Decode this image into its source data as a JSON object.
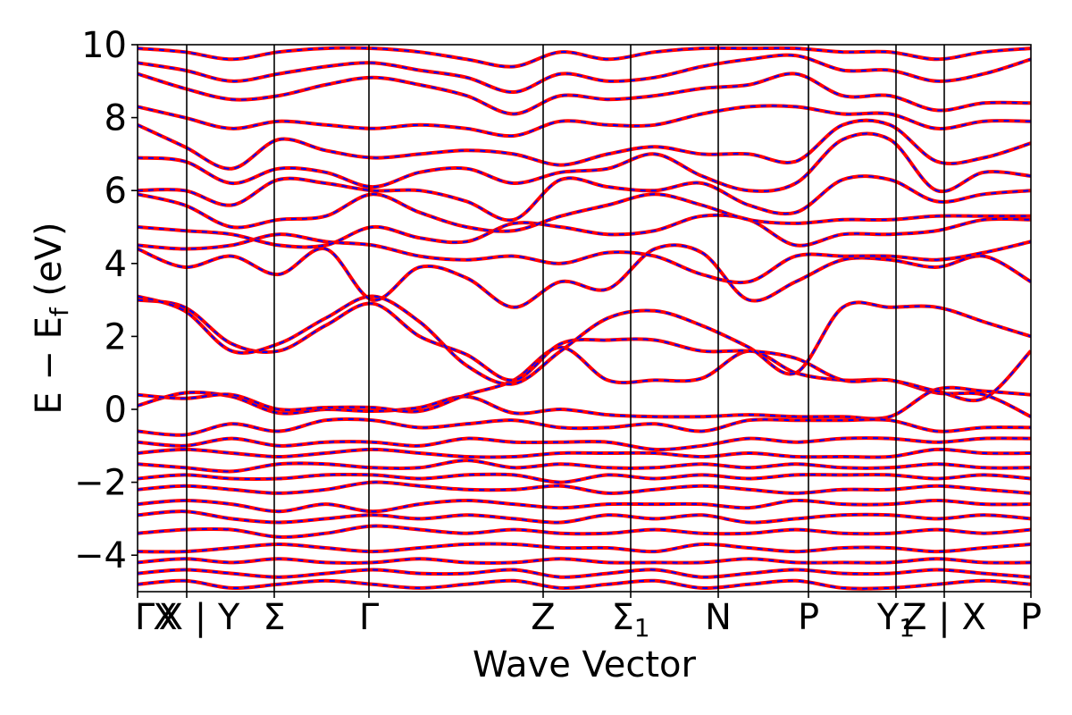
{
  "chart_data": {
    "type": "line",
    "title": "",
    "xlabel": "Wave Vector",
    "ylabel": "E − E",
    "ylabel_subscript": "f",
    "ylabel_unit": " (eV)",
    "ylim": [
      -5,
      10
    ],
    "yticks": [
      {
        "value": -4,
        "label": "−4"
      },
      {
        "value": -2,
        "label": "−2"
      },
      {
        "value": 0,
        "label": "0"
      },
      {
        "value": 2,
        "label": "2"
      },
      {
        "value": 4,
        "label": "4"
      },
      {
        "value": 6,
        "label": "6"
      },
      {
        "value": 8,
        "label": "8"
      },
      {
        "value": 10,
        "label": "10"
      }
    ],
    "xlim": [
      0,
      1
    ],
    "high_symmetry_points": [
      {
        "x": 0.0,
        "label": "Γ"
      },
      {
        "x": 0.055,
        "label": "X"
      },
      {
        "x": 0.153,
        "label": "Σ"
      },
      {
        "x": 0.259,
        "label": "Γ"
      },
      {
        "x": 0.454,
        "label": "Z"
      },
      {
        "x": 0.552,
        "label": "Σ",
        "sub": "1"
      },
      {
        "x": 0.65,
        "label": "N"
      },
      {
        "x": 0.751,
        "label": "P"
      },
      {
        "x": 0.849,
        "label": "Y",
        "sub": "1"
      },
      {
        "x": 0.903,
        "label": "Z | X"
      },
      {
        "x": 1.0,
        "label": "P"
      }
    ],
    "extra_tick_labels": [
      {
        "x": 0.008,
        "label": "Γ"
      },
      {
        "x": 0.031,
        "label": "X"
      },
      {
        "x": 0.055,
        "label": "X | Y"
      }
    ],
    "series": [
      {
        "color": "#ff0000",
        "style": "solid"
      },
      {
        "color": "#0000ff",
        "style": "dashed"
      }
    ],
    "bands": [
      [
        0.1,
        0.45,
        0.35,
        -0.1,
        0.0,
        -0.05,
        0.05,
        0.35,
        -0.1,
        0.0,
        -0.15,
        -0.2,
        -0.2,
        -0.15,
        -0.2,
        -0.2,
        -0.2,
        0.55,
        0.5,
        0.4
      ],
      [
        0.4,
        0.3,
        0.4,
        0.0,
        0.05,
        0.05,
        -0.05,
        0.4,
        0.8,
        1.7,
        0.8,
        0.8,
        0.85,
        1.6,
        1.0,
        0.8,
        0.8,
        0.45,
        0.4,
        -0.2
      ],
      [
        3.0,
        2.8,
        1.8,
        1.6,
        2.3,
        2.9,
        2.0,
        1.5,
        0.8,
        1.8,
        1.9,
        1.9,
        1.6,
        1.6,
        1.4,
        0.8,
        0.8,
        0.5,
        0.3,
        1.6
      ],
      [
        3.1,
        2.7,
        1.6,
        1.8,
        2.5,
        3.1,
        2.4,
        1.2,
        0.7,
        1.6,
        2.5,
        2.7,
        2.3,
        1.7,
        1.0,
        2.8,
        2.8,
        2.8,
        2.4,
        2.0
      ],
      [
        4.4,
        3.9,
        4.2,
        3.7,
        4.4,
        3.0,
        3.9,
        3.6,
        2.8,
        3.5,
        3.3,
        4.4,
        4.3,
        3.0,
        3.5,
        4.1,
        4.1,
        3.9,
        4.2,
        3.5
      ],
      [
        4.5,
        4.4,
        4.5,
        4.8,
        4.6,
        4.5,
        4.2,
        4.1,
        4.2,
        4.0,
        4.3,
        4.2,
        3.7,
        3.5,
        4.2,
        4.2,
        4.2,
        4.1,
        4.3,
        4.6
      ],
      [
        5.0,
        4.9,
        4.8,
        4.5,
        4.5,
        5.0,
        4.7,
        4.6,
        5.1,
        5.0,
        4.8,
        4.9,
        5.3,
        5.2,
        4.5,
        4.8,
        4.8,
        4.9,
        5.2,
        5.2
      ],
      [
        5.9,
        5.6,
        5.0,
        5.2,
        5.3,
        5.9,
        5.4,
        5.0,
        4.9,
        5.3,
        5.6,
        5.9,
        5.6,
        5.2,
        5.1,
        5.2,
        5.2,
        5.3,
        5.3,
        5.3
      ],
      [
        6.0,
        6.0,
        5.6,
        6.3,
        6.2,
        6.0,
        6.0,
        5.7,
        5.2,
        6.3,
        6.1,
        6.0,
        6.2,
        5.6,
        5.4,
        6.3,
        6.3,
        5.7,
        5.9,
        6.0
      ],
      [
        6.9,
        6.8,
        6.2,
        6.6,
        6.5,
        6.1,
        6.5,
        6.6,
        6.2,
        6.5,
        6.6,
        7.0,
        6.4,
        6.0,
        6.2,
        7.4,
        7.4,
        6.0,
        6.5,
        6.4
      ],
      [
        7.8,
        7.2,
        6.6,
        7.4,
        7.1,
        6.9,
        7.0,
        7.1,
        7.0,
        6.7,
        7.0,
        7.2,
        7.0,
        7.0,
        6.8,
        7.8,
        7.8,
        6.8,
        6.9,
        7.3
      ],
      [
        8.3,
        8.0,
        7.7,
        7.9,
        7.8,
        7.7,
        7.8,
        7.7,
        7.5,
        7.9,
        7.8,
        7.8,
        8.1,
        8.3,
        8.3,
        8.1,
        8.1,
        7.7,
        7.9,
        7.9
      ],
      [
        9.2,
        8.8,
        8.5,
        8.6,
        8.9,
        9.1,
        8.9,
        8.6,
        8.1,
        8.6,
        8.5,
        8.6,
        8.8,
        8.9,
        9.2,
        8.6,
        8.6,
        8.2,
        8.4,
        8.4
      ],
      [
        9.5,
        9.3,
        9.0,
        9.2,
        9.4,
        9.5,
        9.3,
        9.1,
        8.7,
        9.2,
        9.0,
        9.1,
        9.4,
        9.6,
        9.7,
        9.3,
        9.3,
        9.0,
        9.2,
        9.6
      ],
      [
        9.9,
        9.8,
        9.6,
        9.8,
        9.9,
        9.9,
        9.8,
        9.6,
        9.4,
        9.8,
        9.6,
        9.8,
        9.9,
        9.9,
        9.9,
        9.8,
        9.8,
        9.6,
        9.8,
        9.9
      ],
      [
        -0.6,
        -0.7,
        -0.4,
        -0.6,
        -0.3,
        -0.3,
        -0.5,
        -0.4,
        -0.3,
        -0.5,
        -0.5,
        -0.4,
        -0.6,
        -0.3,
        -0.3,
        -0.3,
        -0.3,
        -0.6,
        -0.5,
        -0.5
      ],
      [
        -0.9,
        -1.0,
        -0.8,
        -1.0,
        -0.9,
        -0.9,
        -1.0,
        -0.8,
        -0.9,
        -0.9,
        -0.9,
        -1.1,
        -1.0,
        -0.8,
        -0.9,
        -0.8,
        -0.8,
        -0.9,
        -0.8,
        -0.8
      ],
      [
        -1.2,
        -1.1,
        -1.2,
        -1.3,
        -1.2,
        -1.1,
        -1.2,
        -1.3,
        -1.3,
        -1.2,
        -1.2,
        -1.2,
        -1.3,
        -1.2,
        -1.3,
        -1.3,
        -1.3,
        -1.1,
        -1.2,
        -1.2
      ],
      [
        -1.5,
        -1.6,
        -1.7,
        -1.5,
        -1.5,
        -1.6,
        -1.6,
        -1.4,
        -1.6,
        -1.5,
        -1.6,
        -1.6,
        -1.5,
        -1.6,
        -1.5,
        -1.6,
        -1.6,
        -1.5,
        -1.6,
        -1.6
      ],
      [
        -1.9,
        -1.8,
        -1.9,
        -1.9,
        -1.8,
        -1.8,
        -1.9,
        -1.8,
        -1.8,
        -2.0,
        -1.8,
        -1.9,
        -1.8,
        -1.9,
        -1.8,
        -1.8,
        -1.8,
        -1.9,
        -1.8,
        -1.9
      ],
      [
        -2.2,
        -2.1,
        -2.2,
        -2.3,
        -2.2,
        -2.0,
        -2.1,
        -2.2,
        -2.2,
        -2.1,
        -2.3,
        -2.2,
        -2.1,
        -2.2,
        -2.3,
        -2.2,
        -2.2,
        -2.1,
        -2.2,
        -2.3
      ],
      [
        -2.6,
        -2.5,
        -2.6,
        -2.8,
        -2.6,
        -2.8,
        -2.6,
        -2.5,
        -2.6,
        -2.7,
        -2.6,
        -2.6,
        -2.6,
        -2.7,
        -2.5,
        -2.6,
        -2.6,
        -2.5,
        -2.6,
        -2.6
      ],
      [
        -2.9,
        -2.8,
        -3.0,
        -3.1,
        -3.0,
        -2.9,
        -3.0,
        -2.9,
        -3.0,
        -3.1,
        -2.9,
        -3.0,
        -2.9,
        -3.1,
        -3.0,
        -2.9,
        -2.9,
        -3.0,
        -2.9,
        -3.0
      ],
      [
        -3.4,
        -3.3,
        -3.3,
        -3.5,
        -3.4,
        -3.2,
        -3.3,
        -3.4,
        -3.3,
        -3.4,
        -3.4,
        -3.3,
        -3.4,
        -3.4,
        -3.3,
        -3.4,
        -3.4,
        -3.3,
        -3.4,
        -3.3
      ],
      [
        -3.9,
        -3.9,
        -3.8,
        -3.7,
        -3.8,
        -3.9,
        -3.8,
        -3.7,
        -3.7,
        -3.8,
        -3.8,
        -3.9,
        -3.7,
        -3.8,
        -3.9,
        -3.8,
        -3.8,
        -3.9,
        -3.8,
        -3.7
      ],
      [
        -4.2,
        -4.1,
        -4.2,
        -4.1,
        -4.2,
        -4.2,
        -4.1,
        -4.2,
        -4.2,
        -4.1,
        -4.2,
        -4.2,
        -4.2,
        -4.1,
        -4.2,
        -4.2,
        -4.2,
        -4.1,
        -4.2,
        -4.2
      ],
      [
        -4.5,
        -4.4,
        -4.5,
        -4.6,
        -4.5,
        -4.4,
        -4.5,
        -4.5,
        -4.4,
        -4.6,
        -4.5,
        -4.4,
        -4.6,
        -4.5,
        -4.4,
        -4.5,
        -4.5,
        -4.4,
        -4.5,
        -4.6
      ],
      [
        -4.8,
        -4.7,
        -4.9,
        -4.8,
        -4.7,
        -4.8,
        -4.9,
        -4.8,
        -4.7,
        -4.9,
        -4.8,
        -4.7,
        -4.9,
        -4.8,
        -4.7,
        -4.9,
        -4.9,
        -4.8,
        -4.7,
        -4.8
      ]
    ]
  }
}
